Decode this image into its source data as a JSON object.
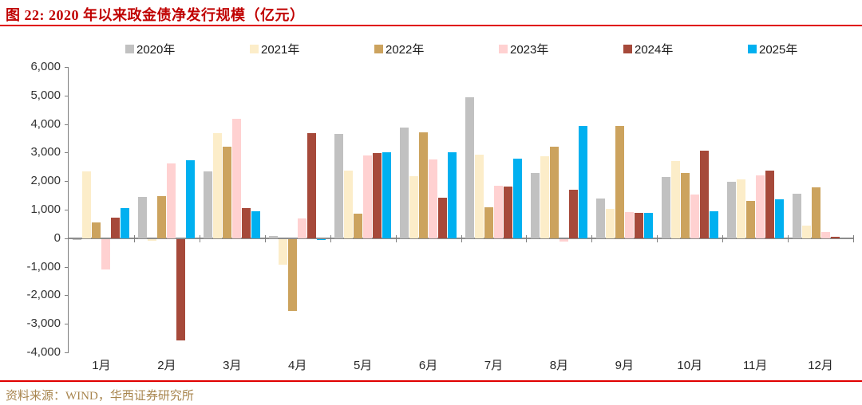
{
  "header": {
    "title": "图 22:  2020 年以来政金债净发行规模（亿元）",
    "accent_color": "#c00000"
  },
  "footer": {
    "source": "资料来源：WIND，华西证券研究所"
  },
  "chart_data": {
    "type": "bar",
    "title": "2020 年以来政金债净发行规模（亿元）",
    "xlabel": "",
    "ylabel": "",
    "categories": [
      "1月",
      "2月",
      "3月",
      "4月",
      "5月",
      "6月",
      "7月",
      "8月",
      "9月",
      "10月",
      "11月",
      "12月"
    ],
    "series": [
      {
        "name": "2020年",
        "color": "#c1c1c1",
        "values": [
          -40,
          1440,
          2330,
          90,
          3660,
          3880,
          4950,
          2280,
          1380,
          2140,
          1970,
          1570
        ]
      },
      {
        "name": "2021年",
        "color": "#fcedc9",
        "values": [
          2330,
          -60,
          3670,
          -890,
          2380,
          2180,
          2930,
          2880,
          1030,
          2690,
          2060,
          440
        ]
      },
      {
        "name": "2022年",
        "color": "#cca35e",
        "values": [
          540,
          1470,
          3210,
          -2530,
          860,
          3720,
          1090,
          3200,
          3930,
          2280,
          1300,
          1780
        ]
      },
      {
        "name": "2023年",
        "color": "#ffd1d1",
        "values": [
          -1060,
          2630,
          4180,
          700,
          2890,
          2760,
          1850,
          -100,
          930,
          1520,
          2210,
          230
        ]
      },
      {
        "name": "2024年",
        "color": "#a6493a",
        "values": [
          730,
          -3540,
          1060,
          3670,
          2970,
          1420,
          1800,
          1710,
          900,
          3080,
          2370,
          50
        ]
      },
      {
        "name": "2025年",
        "color": "#00b0f0",
        "values": [
          1060,
          2730,
          940,
          -40,
          3010,
          3000,
          2800,
          3930,
          880,
          950,
          1360,
          null
        ]
      }
    ],
    "ylim": [
      -4000,
      6000
    ],
    "ytick_step": 1000,
    "ytick_labels": [
      "6,000",
      "5,000",
      "4,000",
      "3,000",
      "2,000",
      "1,000",
      "0",
      "-1,000",
      "-2,000",
      "-3,000",
      "-4,000"
    ],
    "grid": false,
    "legend_position": "top"
  }
}
